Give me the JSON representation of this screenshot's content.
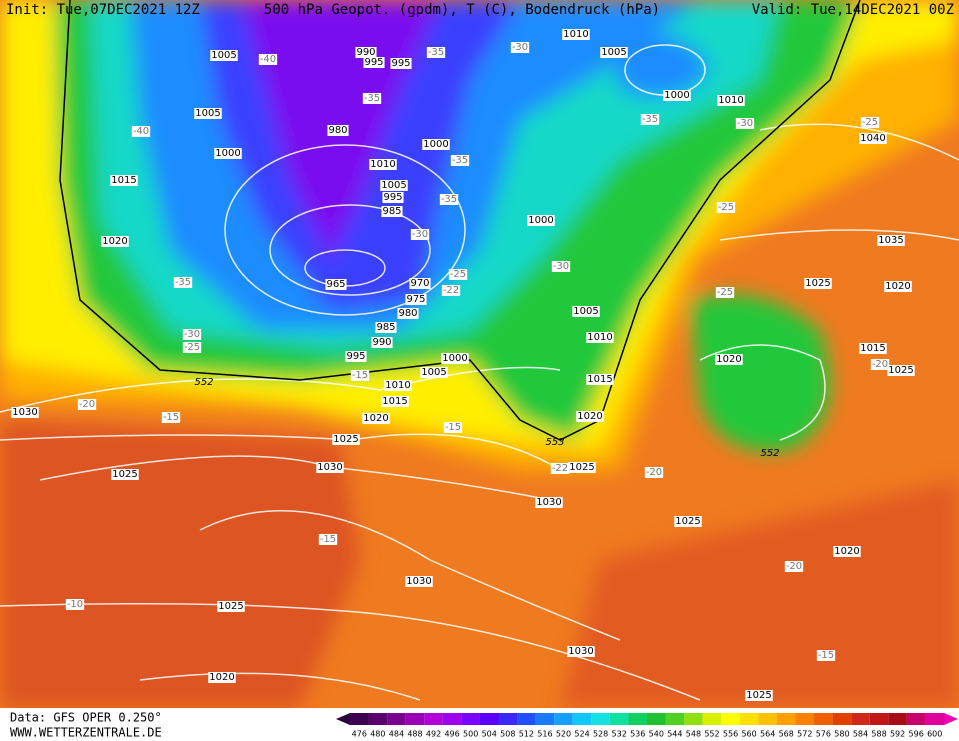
{
  "header": {
    "init": "Init: Tue,07DEC2021 12Z",
    "title": "500 hPa Geopot. (gpdm), T (C), Bodendruck (hPa)",
    "valid": "Valid: Tue,14DEC2021 00Z"
  },
  "map": {
    "pressure_labels": [
      1005,
      990,
      995,
      995,
      1005,
      980,
      1000,
      1000,
      1010,
      1005,
      995,
      985,
      1015,
      1020,
      965,
      970,
      975,
      980,
      985,
      990,
      995,
      1000,
      1005,
      1010,
      1015,
      1020,
      1025,
      1030,
      1025,
      1030,
      1010,
      1005,
      1000,
      1010,
      1040,
      1035,
      1000,
      1005,
      1010,
      1015,
      1020,
      1025,
      1030,
      1025,
      1020,
      1020,
      1015,
      1025,
      1025,
      1020,
      1030,
      1025,
      1030,
      1020,
      1025
    ],
    "temperature_labels": [
      -40,
      -35,
      -30,
      -35,
      -40,
      -35,
      -30,
      -25,
      -35,
      -35,
      -30,
      -25,
      -22,
      -35,
      -30,
      -25,
      -30,
      -25,
      -25,
      -20,
      -15,
      -20,
      -15,
      -15,
      -20,
      -22,
      -15,
      -20,
      -10,
      -15
    ],
    "height_labels": [
      552,
      553,
      552
    ]
  },
  "colorbar": {
    "labels": [
      476,
      480,
      484,
      488,
      492,
      496,
      500,
      504,
      508,
      512,
      516,
      520,
      524,
      528,
      532,
      536,
      540,
      544,
      548,
      552,
      556,
      560,
      564,
      568,
      572,
      576,
      580,
      584,
      588,
      592,
      596,
      600
    ]
  },
  "footer": {
    "source": "Data: GFS OPER 0.250°",
    "url": "WWW.WETTERZENTRALE.DE"
  }
}
